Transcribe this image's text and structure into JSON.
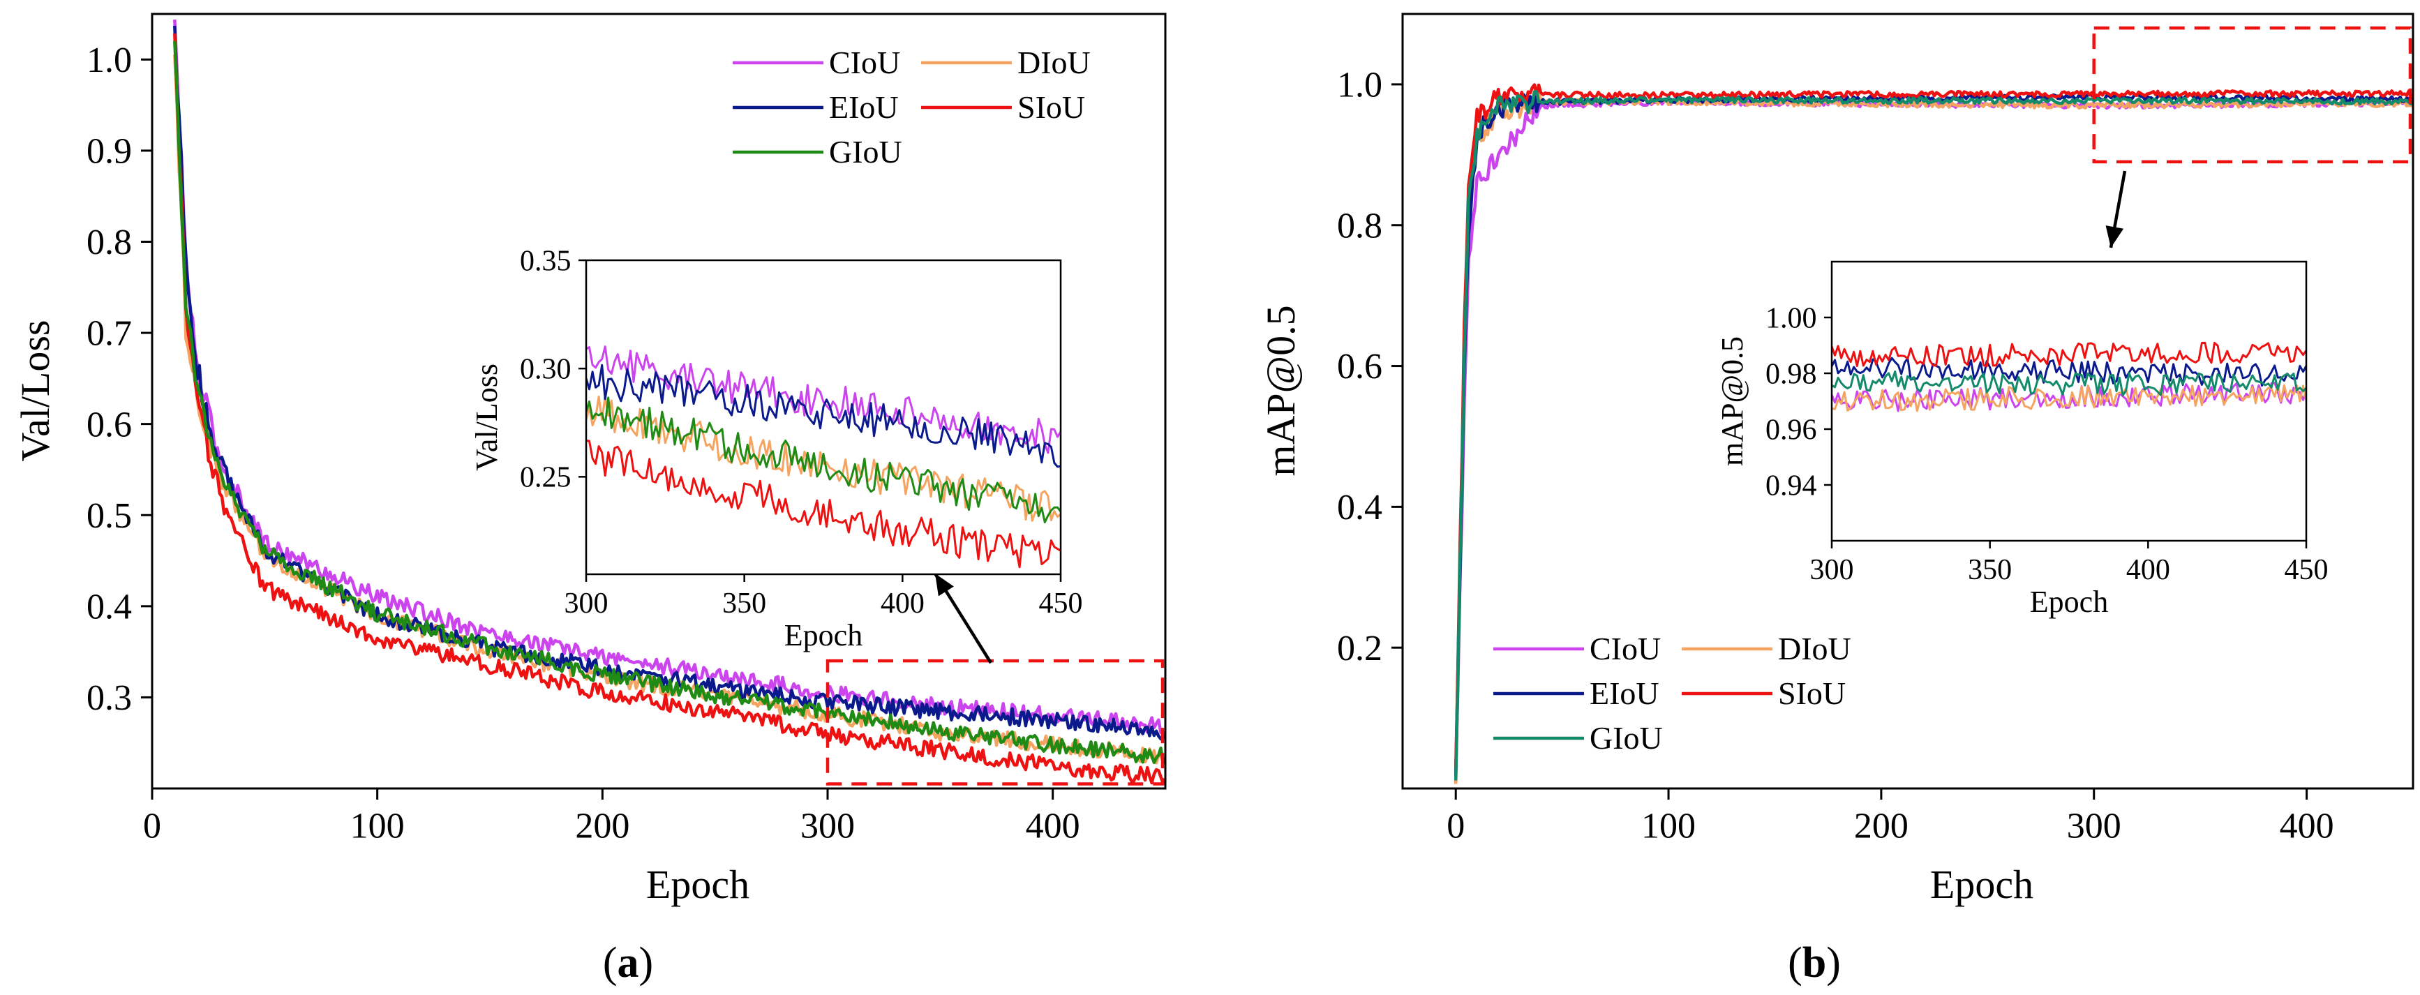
{
  "chart_data": [
    {
      "id": "a",
      "panel_label": "a",
      "type": "line",
      "xlabel": "Epoch",
      "ylabel": "Val/Loss",
      "xlim": [
        0,
        450
      ],
      "ylim": [
        0.2,
        1.05
      ],
      "xticks": [
        0,
        100,
        200,
        300,
        400
      ],
      "yticks": [
        0.3,
        0.4,
        0.5,
        0.6,
        0.7,
        0.8,
        0.9,
        1.0
      ],
      "xtick_labels": [
        "0",
        "100",
        "200",
        "300",
        "400"
      ],
      "ytick_labels": [
        "0.3",
        "0.4",
        "0.5",
        "0.6",
        "0.7",
        "0.8",
        "0.9",
        "1.0"
      ],
      "legend_position": "top-right",
      "x": [
        10,
        15,
        20,
        30,
        50,
        100,
        150,
        200,
        250,
        300,
        350,
        400,
        450
      ],
      "series": [
        {
          "name": "CIoU",
          "color": "#cc44ee",
          "values": [
            1.04,
            0.78,
            0.66,
            0.56,
            0.47,
            0.41,
            0.37,
            0.345,
            0.325,
            0.305,
            0.29,
            0.28,
            0.268
          ]
        },
        {
          "name": "DIoU",
          "color": "#f4a460",
          "values": [
            1.02,
            0.7,
            0.63,
            0.54,
            0.455,
            0.39,
            0.352,
            0.323,
            0.302,
            0.282,
            0.262,
            0.248,
            0.235
          ]
        },
        {
          "name": "EIoU",
          "color": "#0a1a8c",
          "values": [
            1.04,
            0.77,
            0.66,
            0.56,
            0.46,
            0.39,
            0.355,
            0.332,
            0.312,
            0.295,
            0.285,
            0.275,
            0.262
          ]
        },
        {
          "name": "SIoU",
          "color": "#ee1111",
          "values": [
            1.02,
            0.72,
            0.62,
            0.52,
            0.42,
            0.365,
            0.335,
            0.305,
            0.285,
            0.26,
            0.242,
            0.225,
            0.212
          ]
        },
        {
          "name": "GIoU",
          "color": "#1f8a14",
          "values": [
            1.03,
            0.73,
            0.64,
            0.545,
            0.46,
            0.392,
            0.355,
            0.325,
            0.303,
            0.283,
            0.263,
            0.248,
            0.235
          ]
        }
      ],
      "highlight_box": {
        "x": [
          300,
          450
        ],
        "y": [
          0.205,
          0.34
        ]
      },
      "inset": {
        "xlabel": "Epoch",
        "ylabel": "Val/Loss",
        "xlim": [
          300,
          450
        ],
        "ylim": [
          0.205,
          0.35
        ],
        "xticks": [
          300,
          350,
          400,
          450
        ],
        "yticks": [
          0.25,
          0.3,
          0.35
        ],
        "xtick_labels": [
          "300",
          "350",
          "400",
          "450"
        ],
        "ytick_labels": [
          "0.25",
          "0.30",
          "0.35"
        ]
      }
    },
    {
      "id": "b",
      "panel_label": "b",
      "type": "line",
      "xlabel": "Epoch",
      "ylabel": "mAP@0.5",
      "xlim": [
        -25,
        450
      ],
      "ylim": [
        0.0,
        1.1
      ],
      "xticks": [
        0,
        100,
        200,
        300,
        400
      ],
      "yticks": [
        0.2,
        0.4,
        0.6,
        0.8,
        1.0
      ],
      "xtick_labels": [
        "0",
        "100",
        "200",
        "300",
        "400"
      ],
      "ytick_labels": [
        "0.2",
        "0.4",
        "0.6",
        "0.8",
        "1.0"
      ],
      "legend_position": "bottom-left",
      "x": [
        0,
        4,
        6,
        10,
        20,
        40,
        100,
        200,
        300,
        400,
        450
      ],
      "series": [
        {
          "name": "CIoU",
          "color": "#cc44ee",
          "values": [
            0.02,
            0.55,
            0.75,
            0.86,
            0.9,
            0.97,
            0.975,
            0.972,
            0.97,
            0.972,
            0.973
          ]
        },
        {
          "name": "DIoU",
          "color": "#f4a460",
          "values": [
            0.02,
            0.6,
            0.82,
            0.92,
            0.96,
            0.975,
            0.975,
            0.972,
            0.97,
            0.972,
            0.972
          ]
        },
        {
          "name": "EIoU",
          "color": "#0a1a8c",
          "values": [
            0.02,
            0.6,
            0.78,
            0.93,
            0.965,
            0.975,
            0.978,
            0.98,
            0.982,
            0.98,
            0.979
          ]
        },
        {
          "name": "SIoU",
          "color": "#ee1111",
          "values": [
            0.02,
            0.65,
            0.85,
            0.95,
            0.985,
            0.985,
            0.985,
            0.986,
            0.986,
            0.987,
            0.987
          ]
        },
        {
          "name": "GIoU",
          "color": "#138a6a",
          "values": [
            0.02,
            0.62,
            0.83,
            0.93,
            0.97,
            0.976,
            0.978,
            0.977,
            0.977,
            0.976,
            0.976
          ]
        }
      ],
      "highlight_box": {
        "x": [
          300,
          450
        ],
        "y": [
          0.89,
          1.08
        ]
      },
      "inset": {
        "xlabel": "Epoch",
        "ylabel": "mAP@0.5",
        "xlim": [
          300,
          450
        ],
        "ylim": [
          0.92,
          1.02
        ],
        "xticks": [
          300,
          350,
          400,
          450
        ],
        "yticks": [
          0.94,
          0.96,
          0.98,
          1.0
        ],
        "xtick_labels": [
          "300",
          "350",
          "400",
          "450"
        ],
        "ytick_labels": [
          "0.94",
          "0.96",
          "0.98",
          "1.00"
        ]
      }
    }
  ]
}
